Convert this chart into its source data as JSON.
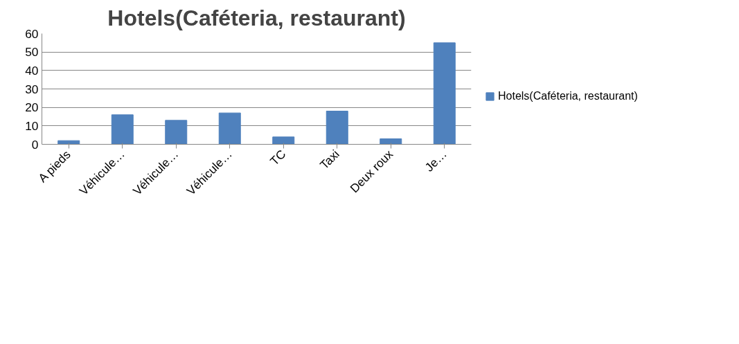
{
  "chart_data": {
    "type": "bar",
    "title": "Hotels(Caféteria, restaurant)",
    "categories": [
      "A pieds",
      "Véhicule…",
      "Véhicule…",
      "Véhicule…",
      "TC",
      "Taxi",
      "Deux roux",
      "Je…"
    ],
    "series": [
      {
        "name": "Hotels(Caféteria, restaurant)",
        "color": "#4f81bd",
        "values": [
          2,
          16,
          13,
          17,
          4,
          18,
          3,
          55
        ]
      }
    ],
    "ylim": [
      0,
      60
    ],
    "yticks": [
      0,
      10,
      20,
      30,
      40,
      50,
      60
    ],
    "grid": "y",
    "legend": "right"
  }
}
